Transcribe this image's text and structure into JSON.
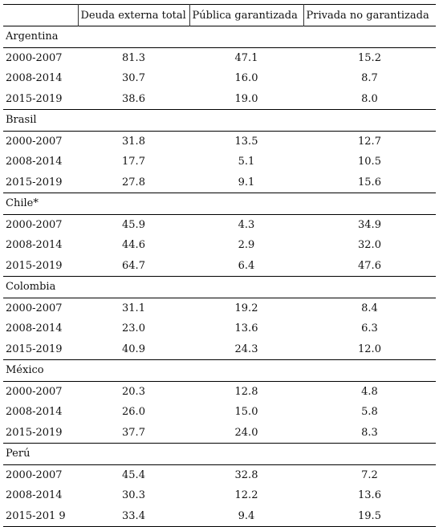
{
  "headers": [
    "",
    "Deuda externa total",
    "Pública garantizada",
    "Privada no garantizada"
  ],
  "groups": [
    {
      "country": "Argentina",
      "rows": [
        {
          "period": "2000-2007",
          "total": "81.3",
          "publica": "47.1",
          "privada": "15.2"
        },
        {
          "period": "2008-2014",
          "total": "30.7",
          "publica": "16.0",
          "privada": "8.7"
        },
        {
          "period": "2015-2019",
          "total": "38.6",
          "publica": "19.0",
          "privada": "8.0"
        }
      ]
    },
    {
      "country": "Brasil",
      "rows": [
        {
          "period": "2000-2007",
          "total": "31.8",
          "publica": "13.5",
          "privada": "12.7"
        },
        {
          "period": "2008-2014",
          "total": "17.7",
          "publica": "5.1",
          "privada": "10.5"
        },
        {
          "period": "2015-2019",
          "total": "27.8",
          "publica": "9.1",
          "privada": "15.6"
        }
      ]
    },
    {
      "country": "Chile*",
      "rows": [
        {
          "period": "2000-2007",
          "total": "45.9",
          "publica": "4.3",
          "privada": "34.9"
        },
        {
          "period": "2008-2014",
          "total": "44.6",
          "publica": "2.9",
          "privada": "32.0"
        },
        {
          "period": "2015-2019",
          "total": "64.7",
          "publica": "6.4",
          "privada": "47.6"
        }
      ]
    },
    {
      "country": "Colombia",
      "rows": [
        {
          "period": "2000-2007",
          "total": "31.1",
          "publica": "19.2",
          "privada": "8.4"
        },
        {
          "period": "2008-2014",
          "total": "23.0",
          "publica": "13.6",
          "privada": "6.3"
        },
        {
          "period": "2015-2019",
          "total": "40.9",
          "publica": "24.3",
          "privada": "12.0"
        }
      ]
    },
    {
      "country": "México",
      "rows": [
        {
          "period": "2000-2007",
          "total": "20.3",
          "publica": "12.8",
          "privada": "4.8"
        },
        {
          "period": "2008-2014",
          "total": "26.0",
          "publica": "15.0",
          "privada": "5.8"
        },
        {
          "period": "2015-2019",
          "total": "37.7",
          "publica": "24.0",
          "privada": "8.3"
        }
      ]
    },
    {
      "country": "Perú",
      "rows": [
        {
          "period": "2000-2007",
          "total": "45.4",
          "publica": "32.8",
          "privada": "7.2"
        },
        {
          "period": "2008-2014",
          "total": "30.3",
          "publica": "12.2",
          "privada": "13.6"
        },
        {
          "period": "2015-201 9",
          "total": "33.4",
          "publica": "9.4",
          "privada": "19.5"
        }
      ]
    }
  ]
}
